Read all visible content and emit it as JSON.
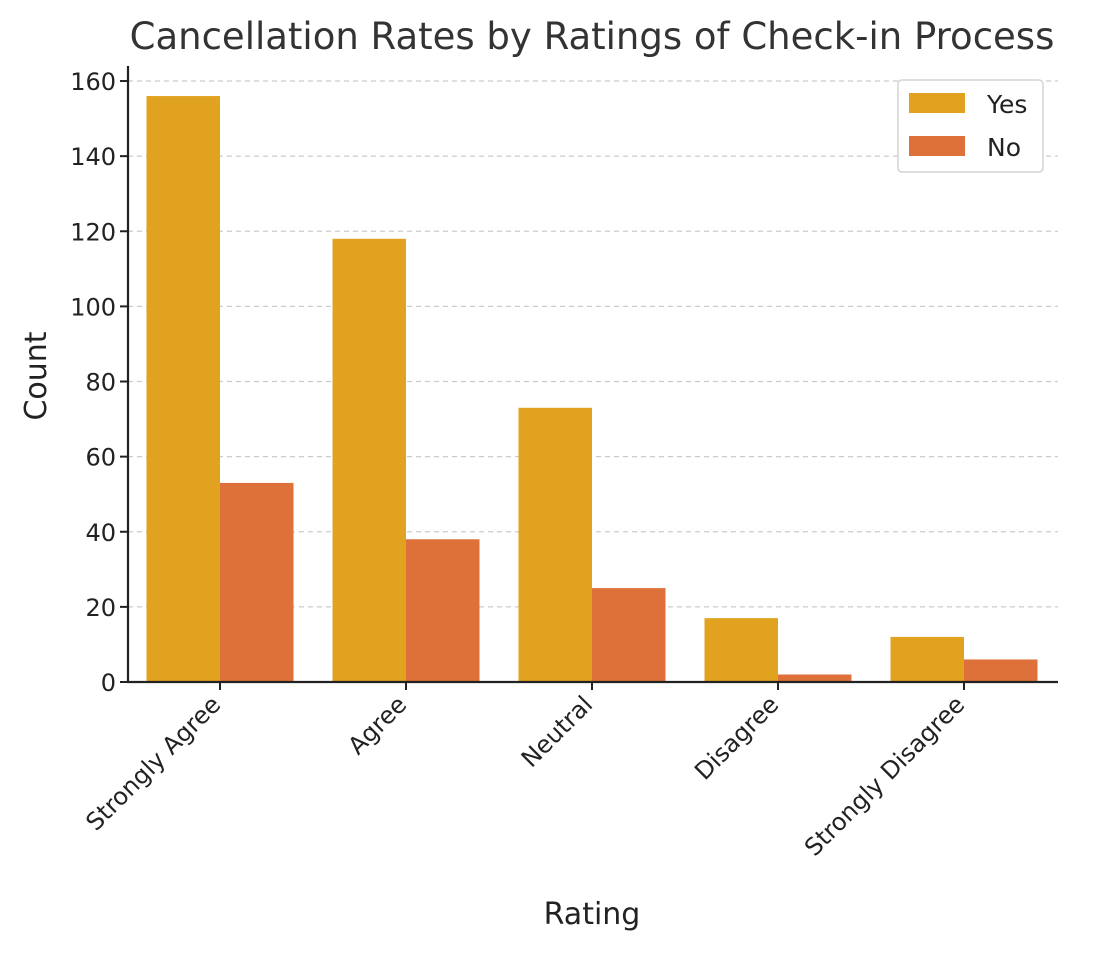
{
  "chart_data": {
    "type": "bar",
    "title": "Cancellation Rates by Ratings of Check-in Process",
    "xlabel": "Rating",
    "ylabel": "Count",
    "categories": [
      "Strongly Agree",
      "Agree",
      "Neutral",
      "Disagree",
      "Strongly Disagree"
    ],
    "series": [
      {
        "name": "Yes",
        "values": [
          156,
          118,
          73,
          17,
          12
        ],
        "color": "#E1A21F"
      },
      {
        "name": "No",
        "values": [
          53,
          38,
          25,
          2,
          6
        ],
        "color": "#DD7139"
      }
    ],
    "ylim": [
      0,
      164
    ],
    "yticks": [
      0,
      20,
      40,
      60,
      80,
      100,
      120,
      140,
      160
    ],
    "grid": true,
    "legend": "top-right",
    "colors": {
      "grid": "#cccccc",
      "axis": "#222222",
      "text": "#222222",
      "title": "#333333"
    }
  }
}
